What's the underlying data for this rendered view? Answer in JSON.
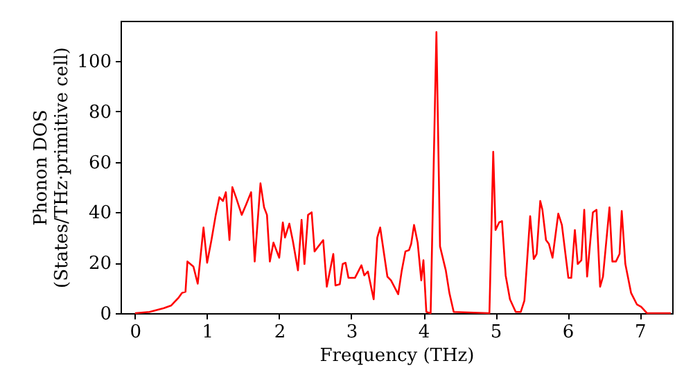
{
  "chart_data": {
    "type": "line",
    "xlabel": "Frequency (THz)",
    "ylabel": "Phonon DOS\n(States/THz·primitive cell)",
    "xlim": [
      -0.2,
      7.45
    ],
    "ylim": [
      0,
      116
    ],
    "xticks": [
      0,
      1,
      2,
      3,
      4,
      5,
      6,
      7
    ],
    "yticks": [
      0,
      20,
      40,
      60,
      80,
      100
    ],
    "grid": false,
    "marker": "none",
    "line_style": "solid",
    "series": [
      {
        "color": "#ff0000",
        "x": [
          0.0,
          0.2,
          0.4,
          0.5,
          0.6,
          0.65,
          0.7,
          0.727,
          0.81,
          0.87,
          0.95,
          1.0,
          1.06,
          1.12,
          1.17,
          1.22,
          1.26,
          1.31,
          1.35,
          1.4,
          1.48,
          1.54,
          1.61,
          1.66,
          1.74,
          1.79,
          1.83,
          1.87,
          1.92,
          2.0,
          2.05,
          2.08,
          2.14,
          2.19,
          2.26,
          2.31,
          2.35,
          2.4,
          2.45,
          2.49,
          2.61,
          2.66,
          2.75,
          2.78,
          2.84,
          2.88,
          2.92,
          2.96,
          3.05,
          3.14,
          3.18,
          3.23,
          3.31,
          3.36,
          3.4,
          3.5,
          3.55,
          3.65,
          3.7,
          3.75,
          3.8,
          3.83,
          3.87,
          3.92,
          3.97,
          4.0,
          4.04,
          4.1,
          4.18,
          4.23,
          4.31,
          4.36,
          4.42,
          4.915,
          4.968,
          5.0,
          5.05,
          5.09,
          5.14,
          5.2,
          5.28,
          5.35,
          5.4,
          5.48,
          5.53,
          5.57,
          5.62,
          5.65,
          5.7,
          5.74,
          5.79,
          5.87,
          5.92,
          6.01,
          6.05,
          6.1,
          6.14,
          6.19,
          6.23,
          6.27,
          6.35,
          6.4,
          6.45,
          6.49,
          6.58,
          6.62,
          6.67,
          6.72,
          6.75,
          6.8,
          6.88,
          6.96,
          7.02,
          7.1,
          7.43
        ],
        "values": [
          0,
          0.5,
          2,
          3,
          6,
          8,
          8.5,
          20.5,
          18.5,
          11.7,
          34,
          20,
          29,
          39,
          46,
          44.5,
          48,
          29,
          50,
          46,
          39,
          43,
          48,
          20.5,
          51.5,
          42,
          39,
          20.5,
          28,
          22,
          36,
          30,
          35.5,
          28.5,
          17,
          37,
          19.5,
          39,
          40,
          24.5,
          29,
          10.5,
          23.5,
          11,
          11.5,
          19.5,
          20,
          14,
          14,
          19,
          15,
          16.5,
          5.5,
          30,
          34,
          14.5,
          13,
          7.5,
          17,
          24.5,
          25,
          27.5,
          35,
          28,
          13,
          21,
          0.5,
          0,
          111.5,
          26.5,
          17,
          8,
          0.5,
          0,
          64,
          33,
          36,
          36.5,
          15,
          5.5,
          0.5,
          0.5,
          5,
          38.5,
          21.5,
          23.5,
          44.5,
          41,
          29,
          27.5,
          22,
          39.5,
          35,
          14,
          14,
          33,
          19.5,
          21,
          41,
          14.5,
          40,
          41,
          10.5,
          14.5,
          42,
          20.5,
          20.5,
          23.5,
          40.5,
          19.5,
          8,
          3.5,
          2.5,
          0,
          0
        ]
      }
    ]
  }
}
